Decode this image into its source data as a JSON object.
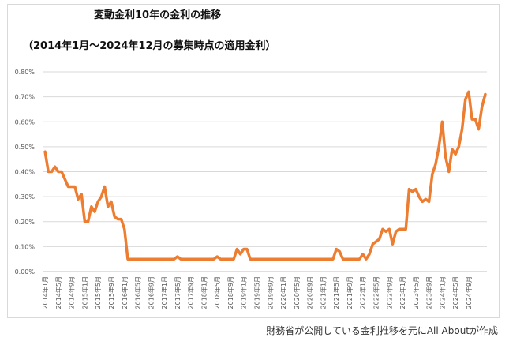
{
  "chart_data": {
    "type": "line",
    "title": "変動金利10年の金利の推移",
    "subtitle": "（2014年1月～2024年12月の募集時点の適用金利）",
    "xlabel": "",
    "ylabel": "",
    "ylim": [
      0,
      0.008
    ],
    "y_ticks": [
      "0.00%",
      "0.10%",
      "0.20%",
      "0.30%",
      "0.40%",
      "0.50%",
      "0.60%",
      "0.70%",
      "0.80%"
    ],
    "x_start": "2014年1月",
    "x_end": "2024年12月",
    "x_ticks": [
      "2014年1月",
      "2014年5月",
      "2014年9月",
      "2015年1月",
      "2015年5月",
      "2015年9月",
      "2016年1月",
      "2016年5月",
      "2016年9月",
      "2017年1月",
      "2017年5月",
      "2017年9月",
      "2018年1月",
      "2018年5月",
      "2018年9月",
      "2019年1月",
      "2019年5月",
      "2019年9月",
      "2020年1月",
      "2020年5月",
      "2020年9月",
      "2021年1月",
      "2021年5月",
      "2021年9月",
      "2022年1月",
      "2022年5月",
      "2022年9月",
      "2023年1月",
      "2023年5月",
      "2023年9月",
      "2024年1月",
      "2024年5月",
      "2024年9月"
    ],
    "grid": "horizontal",
    "legend": "none",
    "line_color": "#ED7D31",
    "series": [
      {
        "values": [
          0.0048,
          0.004,
          0.004,
          0.0042,
          0.004,
          0.004,
          0.0037,
          0.0034,
          0.0034,
          0.0034,
          0.0029,
          0.0031,
          0.002,
          0.002,
          0.0026,
          0.0024,
          0.0028,
          0.003,
          0.0034,
          0.0026,
          0.0028,
          0.0022,
          0.0021,
          0.0021,
          0.0017,
          0.0005,
          0.0005,
          0.0005,
          0.0005,
          0.0005,
          0.0005,
          0.0005,
          0.0005,
          0.0005,
          0.0005,
          0.0005,
          0.0005,
          0.0005,
          0.0005,
          0.0005,
          0.0006,
          0.0005,
          0.0005,
          0.0005,
          0.0005,
          0.0005,
          0.0005,
          0.0005,
          0.0005,
          0.0005,
          0.0005,
          0.0005,
          0.0006,
          0.0005,
          0.0005,
          0.0005,
          0.0005,
          0.0005,
          0.0009,
          0.0007,
          0.0009,
          0.0009,
          0.0005,
          0.0005,
          0.0005,
          0.0005,
          0.0005,
          0.0005,
          0.0005,
          0.0005,
          0.0005,
          0.0005,
          0.0005,
          0.0005,
          0.0005,
          0.0005,
          0.0005,
          0.0005,
          0.0005,
          0.0005,
          0.0005,
          0.0005,
          0.0005,
          0.0005,
          0.0005,
          0.0005,
          0.0005,
          0.0005,
          0.0009,
          0.0008,
          0.0005,
          0.0005,
          0.0005,
          0.0005,
          0.0005,
          0.0005,
          0.0007,
          0.0005,
          0.0007,
          0.0011,
          0.0012,
          0.0013,
          0.0017,
          0.0016,
          0.0017,
          0.0011,
          0.0016,
          0.0017,
          0.0017,
          0.0017,
          0.0033,
          0.0032,
          0.0033,
          0.003,
          0.0028,
          0.0029,
          0.0028,
          0.0039,
          0.0043,
          0.005,
          0.006,
          0.0046,
          0.004,
          0.0049,
          0.0047,
          0.005,
          0.0057,
          0.0069,
          0.0072,
          0.0061,
          0.0061,
          0.0057,
          0.0066,
          0.0071
        ]
      }
    ]
  },
  "source_note": "財務省が公開している金利推移を元にAll Aboutが作成"
}
